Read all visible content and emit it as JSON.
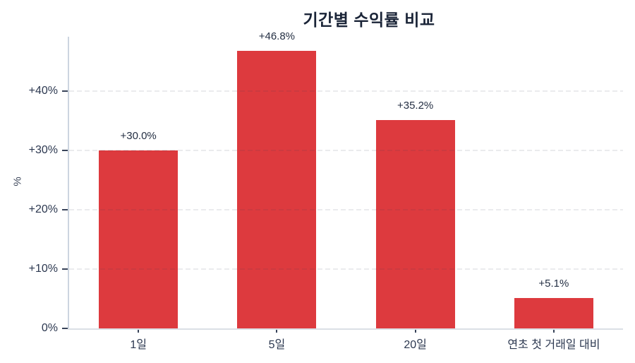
{
  "chart_data": {
    "type": "bar",
    "title": "기간별 수익률 비교",
    "xlabel": "",
    "ylabel": "%",
    "categories": [
      "1일",
      "5일",
      "20일",
      "연초 첫 거래일 대비"
    ],
    "values": [
      30.0,
      46.8,
      35.2,
      5.1
    ],
    "value_labels": [
      "+30.0%",
      "+46.8%",
      "+35.2%",
      "+5.1%"
    ],
    "ytick_values": [
      0,
      10,
      20,
      30,
      40
    ],
    "ytick_labels": [
      "0%",
      "+10%",
      "+20%",
      "+30%",
      "+40%"
    ],
    "ylim": [
      0,
      49.2
    ],
    "grid": "dashed-horizontal-gridlines",
    "legend": "none",
    "bar_color": "#dd3a3e",
    "background_color": "#ffffff",
    "title_color": "#1a2437",
    "tick_label_color": "#2c3850"
  }
}
